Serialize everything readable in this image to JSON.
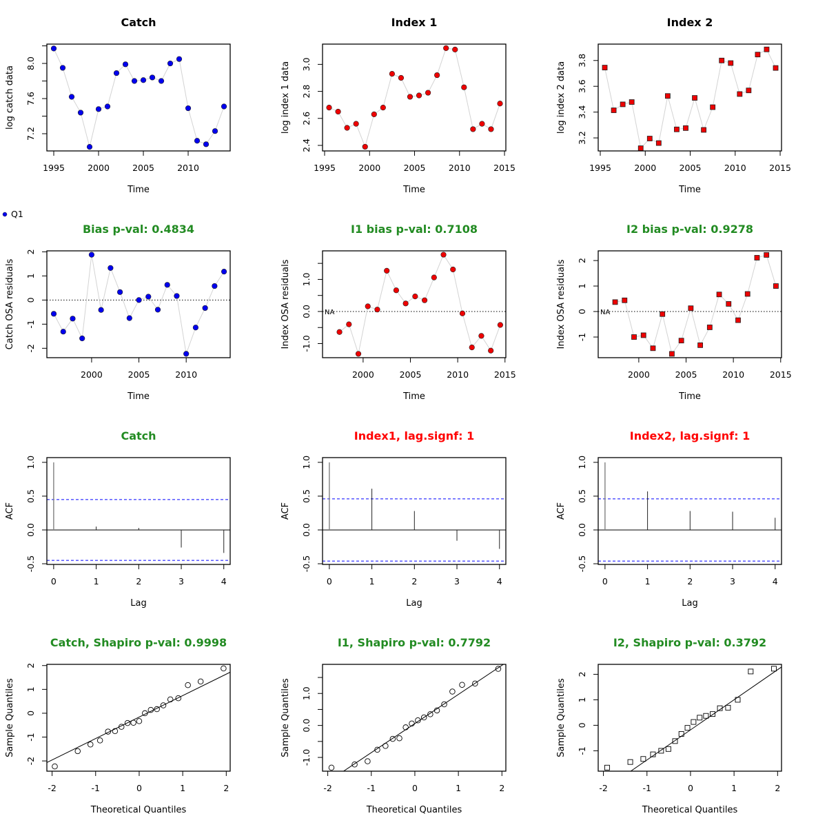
{
  "colors": {
    "title_black": "#000000",
    "title_green": "#228b22",
    "title_red": "#ff0000",
    "catch_point": "#0000ee",
    "index_point": "#ee0000",
    "connector_line": "#d3d3d3",
    "ci_line": "#0000ff"
  },
  "legend": {
    "marker": "filled-circle",
    "label": "Q1"
  },
  "chart_data": [
    {
      "id": "catch-data",
      "type": "line",
      "title": "Catch",
      "title_color": "black",
      "xlabel": "Time",
      "ylabel": "log catch data",
      "marker": "circle",
      "point_color": "catch",
      "xlim": [
        1994.23,
        2014.69
      ],
      "ylim": [
        7.004,
        8.22
      ],
      "xticks": [
        1995,
        2000,
        2005,
        2010
      ],
      "xtick_labels": [
        "1995",
        "2000",
        "2005",
        "2010"
      ],
      "yticks": [
        7.2,
        7.4,
        7.6,
        7.8,
        8.0,
        8.2
      ],
      "ytick_labels": [
        "7.2",
        "",
        "7.6",
        "",
        "8.0",
        ""
      ],
      "x": [
        1995,
        1996,
        1997,
        1998,
        1999,
        2000,
        2001,
        2002,
        2003,
        2004,
        2005,
        2006,
        2007,
        2008,
        2009,
        2010,
        2011,
        2012,
        2013,
        2014
      ],
      "y": [
        8.17,
        7.95,
        7.62,
        7.44,
        7.05,
        7.48,
        7.51,
        7.89,
        7.99,
        7.8,
        7.81,
        7.84,
        7.8,
        8.0,
        8.05,
        7.49,
        7.12,
        7.08,
        7.23,
        7.51
      ]
    },
    {
      "id": "index1-data",
      "type": "line",
      "title": "Index 1",
      "title_color": "black",
      "xlabel": "Time",
      "ylabel": "log index 1 data",
      "marker": "circle",
      "point_color": "index",
      "xlim": [
        1994.77,
        2015.15
      ],
      "ylim": [
        2.359,
        3.15
      ],
      "xticks": [
        1995,
        2000,
        2005,
        2010,
        2015
      ],
      "xtick_labels": [
        "1995",
        "2000",
        "2005",
        "2010",
        "2015"
      ],
      "yticks": [
        2.4,
        2.6,
        2.8,
        3.0
      ],
      "ytick_labels": [
        "2.4",
        "2.6",
        "2.8",
        "3.0"
      ],
      "x": [
        1995.5,
        1996.5,
        1997.5,
        1998.5,
        1999.5,
        2000.5,
        2001.5,
        2002.5,
        2003.5,
        2004.5,
        2005.5,
        2006.5,
        2007.5,
        2008.5,
        2009.5,
        2010.5,
        2011.5,
        2012.5,
        2013.5,
        2014.5
      ],
      "y": [
        2.68,
        2.65,
        2.53,
        2.56,
        2.39,
        2.63,
        2.68,
        2.93,
        2.9,
        2.76,
        2.77,
        2.79,
        2.92,
        3.12,
        3.11,
        2.83,
        2.52,
        2.56,
        2.52,
        2.71
      ]
    },
    {
      "id": "index2-data",
      "type": "line",
      "title": "Index 2",
      "title_color": "black",
      "xlabel": "Time",
      "ylabel": "log index 2 data",
      "marker": "square",
      "point_color": "index",
      "xlim": [
        1994.77,
        2015.15
      ],
      "ylim": [
        3.099,
        3.927
      ],
      "xticks": [
        1995,
        2000,
        2005,
        2010,
        2015
      ],
      "xtick_labels": [
        "1995",
        "2000",
        "2005",
        "2010",
        "2015"
      ],
      "yticks": [
        3.2,
        3.4,
        3.6,
        3.8
      ],
      "ytick_labels": [
        "3.2",
        "3.4",
        "3.6",
        "3.8"
      ],
      "x": [
        1995.5,
        1996.5,
        1997.5,
        1998.5,
        1999.5,
        2000.5,
        2001.5,
        2002.5,
        2003.5,
        2004.5,
        2005.5,
        2006.5,
        2007.5,
        2008.5,
        2009.5,
        2010.5,
        2011.5,
        2012.5,
        2013.5,
        2014.5
      ],
      "y": [
        3.745,
        3.414,
        3.46,
        3.478,
        3.12,
        3.195,
        3.16,
        3.525,
        3.266,
        3.276,
        3.51,
        3.262,
        3.438,
        3.8,
        3.78,
        3.54,
        3.568,
        3.846,
        3.886,
        3.742
      ]
    },
    {
      "id": "catch-osa",
      "type": "line",
      "title": "Bias p-val: 0.4834",
      "title_color": "green",
      "xlabel": "Time",
      "ylabel": "Catch OSA residuals",
      "marker": "circle",
      "point_color": "catch",
      "zero_line": true,
      "xlim": [
        1995.27,
        2014.65
      ],
      "ylim": [
        -2.39,
        2.04
      ],
      "xticks": [
        2000,
        2005,
        2010
      ],
      "xtick_labels": [
        "2000",
        "2005",
        "2010"
      ],
      "yticks": [
        -2,
        -1,
        0,
        1,
        2
      ],
      "ytick_labels": [
        "-2",
        "-1",
        "0",
        "1",
        "2"
      ],
      "x": [
        1996,
        1997,
        1998,
        1999,
        2000,
        2001,
        2002,
        2003,
        2004,
        2005,
        2006,
        2007,
        2008,
        2009,
        2010,
        2011,
        2012,
        2013,
        2014
      ],
      "y": [
        -0.57,
        -1.31,
        -0.77,
        -1.59,
        1.88,
        -0.41,
        1.33,
        0.33,
        -0.75,
        0.0,
        0.14,
        -0.4,
        0.63,
        0.17,
        -2.23,
        -1.14,
        -0.33,
        0.58,
        1.18
      ]
    },
    {
      "id": "index1-osa",
      "type": "line",
      "title": "I1 bias p-val: 0.7108",
      "title_color": "green",
      "xlabel": "Time",
      "ylabel": "Index OSA residuals",
      "marker": "circle",
      "point_color": "index",
      "zero_line": true,
      "na_label": "NA",
      "xlim": [
        1995.71,
        2015.09
      ],
      "ylim": [
        -1.44,
        1.89
      ],
      "xticks": [
        2000,
        2005,
        2010,
        2015
      ],
      "xtick_labels": [
        "2000",
        "2005",
        "2010",
        "2015"
      ],
      "yticks": [
        -1.0,
        -0.5,
        0.0,
        0.5,
        1.0,
        1.5
      ],
      "ytick_labels": [
        "-1.0",
        "",
        "0.0",
        "",
        "1.0",
        ""
      ],
      "x": [
        1997.5,
        1998.5,
        1999.5,
        2000.5,
        2001.5,
        2002.5,
        2003.5,
        2004.5,
        2005.5,
        2006.5,
        2007.5,
        2008.5,
        2009.5,
        2010.5,
        2011.5,
        2012.5,
        2013.5,
        2014.5
      ],
      "y": [
        -0.64,
        -0.4,
        -1.32,
        0.16,
        0.06,
        1.27,
        0.66,
        0.25,
        0.47,
        0.35,
        1.06,
        1.77,
        1.31,
        -0.06,
        -1.12,
        -0.76,
        -1.22,
        -0.42
      ]
    },
    {
      "id": "index2-osa",
      "type": "line",
      "title": "I2 bias p-val: 0.9278",
      "title_color": "green",
      "xlabel": "Time",
      "ylabel": "Index OSA residuals",
      "marker": "square",
      "point_color": "index",
      "zero_line": true,
      "na_label": "NA",
      "xlim": [
        1995.71,
        2015.09
      ],
      "ylim": [
        -1.81,
        2.38
      ],
      "xticks": [
        2000,
        2005,
        2010,
        2015
      ],
      "xtick_labels": [
        "2000",
        "2005",
        "2010",
        "2015"
      ],
      "yticks": [
        -1,
        0,
        1,
        2
      ],
      "ytick_labels": [
        "-1",
        "0",
        "1",
        "2"
      ],
      "x": [
        1997.5,
        1998.5,
        1999.5,
        2000.5,
        2001.5,
        2002.5,
        2003.5,
        2004.5,
        2005.5,
        2006.5,
        2007.5,
        2008.5,
        2009.5,
        2010.5,
        2011.5,
        2012.5,
        2013.5,
        2014.5
      ],
      "y": [
        0.37,
        0.44,
        -1.0,
        -0.93,
        -1.44,
        -0.1,
        -1.66,
        -1.14,
        0.13,
        -1.32,
        -0.62,
        0.67,
        0.3,
        -0.34,
        0.69,
        2.11,
        2.22,
        1.0
      ]
    },
    {
      "id": "catch-acf",
      "type": "bar",
      "title": "Catch",
      "title_color": "green",
      "xlabel": "Lag",
      "ylabel": "ACF",
      "xlim": [
        -0.16,
        4.15
      ],
      "ylim": [
        -0.51,
        1.07
      ],
      "xticks": [
        0,
        1,
        2,
        3,
        4
      ],
      "xtick_labels": [
        "0",
        "1",
        "2",
        "3",
        "4"
      ],
      "yticks": [
        -0.5,
        0.0,
        0.5,
        1.0
      ],
      "ytick_labels": [
        "-0.5",
        "0.0",
        "0.5",
        "1.0"
      ],
      "lags": [
        0,
        1,
        2,
        3,
        4
      ],
      "acf": [
        1.0,
        0.05,
        0.03,
        -0.26,
        -0.34
      ],
      "ci": 0.45
    },
    {
      "id": "index1-acf",
      "type": "bar",
      "title": "Index1, lag.signf: 1",
      "title_color": "red",
      "xlabel": "Lag",
      "ylabel": "ACF",
      "xlim": [
        -0.16,
        4.15
      ],
      "ylim": [
        -0.51,
        1.07
      ],
      "xticks": [
        0,
        1,
        2,
        3,
        4
      ],
      "xtick_labels": [
        "0",
        "1",
        "2",
        "3",
        "4"
      ],
      "yticks": [
        -0.5,
        0.0,
        0.5,
        1.0
      ],
      "ytick_labels": [
        "-0.5",
        "0.0",
        "0.5",
        "1.0"
      ],
      "lags": [
        0,
        1,
        2,
        3,
        4
      ],
      "acf": [
        1.0,
        0.61,
        0.28,
        -0.16,
        -0.28
      ],
      "ci": 0.46
    },
    {
      "id": "index2-acf",
      "type": "bar",
      "title": "Index2, lag.signf: 1",
      "title_color": "red",
      "xlabel": "Lag",
      "ylabel": "ACF",
      "xlim": [
        -0.16,
        4.15
      ],
      "ylim": [
        -0.51,
        1.07
      ],
      "xticks": [
        0,
        1,
        2,
        3,
        4
      ],
      "xtick_labels": [
        "0",
        "1",
        "2",
        "3",
        "4"
      ],
      "yticks": [
        -0.5,
        0.0,
        0.5,
        1.0
      ],
      "ytick_labels": [
        "-0.5",
        "0.0",
        "0.5",
        "1.0"
      ],
      "lags": [
        0,
        1,
        2,
        3,
        4
      ],
      "acf": [
        1.0,
        0.57,
        0.28,
        0.27,
        0.18
      ],
      "ci": 0.46
    },
    {
      "id": "catch-qq",
      "type": "scatter",
      "title": "Catch, Shapiro p-val: 0.9998",
      "title_color": "green",
      "xlabel": "Theoretical Quantiles",
      "ylabel": "Sample Quantiles",
      "marker": "open-circle",
      "xlim": [
        -2.12,
        2.09
      ],
      "ylim": [
        -2.43,
        2.05
      ],
      "xticks": [
        -2,
        -1,
        0,
        1,
        2
      ],
      "xtick_labels": [
        "-2",
        "-1",
        "0",
        "1",
        "2"
      ],
      "yticks": [
        -2,
        -1,
        0,
        1,
        2
      ],
      "ytick_labels": [
        "-2",
        "-1",
        "0",
        "1",
        "2"
      ],
      "x": [
        -1.938,
        -1.412,
        -1.119,
        -0.899,
        -0.716,
        -0.555,
        -0.407,
        -0.267,
        -0.132,
        0.0,
        0.132,
        0.267,
        0.407,
        0.555,
        0.716,
        0.899,
        1.119,
        1.412,
        1.938
      ],
      "y": [
        -2.23,
        -1.59,
        -1.31,
        -1.14,
        -0.77,
        -0.75,
        -0.57,
        -0.41,
        -0.4,
        -0.33,
        0.0,
        0.14,
        0.17,
        0.33,
        0.58,
        0.63,
        1.18,
        1.33,
        1.88
      ],
      "qqline": {
        "intercept": -0.16,
        "slope": 0.9
      }
    },
    {
      "id": "index1-qq",
      "type": "scatter",
      "title": "I1, Shapiro p-val: 0.7792",
      "title_color": "green",
      "xlabel": "Theoretical Quantiles",
      "ylabel": "Sample Quantiles",
      "marker": "open-circle",
      "xlim": [
        -2.12,
        2.09
      ],
      "ylim": [
        -1.43,
        1.91
      ],
      "xticks": [
        -2,
        -1,
        0,
        1,
        2
      ],
      "xtick_labels": [
        "-2",
        "-1",
        "0",
        "1",
        "2"
      ],
      "yticks": [
        -1.0,
        -0.5,
        0.0,
        0.5,
        1.0,
        1.5
      ],
      "ytick_labels": [
        "-1.0",
        "",
        "0.0",
        "",
        "1.0",
        ""
      ],
      "x": [
        -1.915,
        -1.383,
        -1.085,
        -0.862,
        -0.674,
        -0.508,
        -0.355,
        -0.21,
        -0.07,
        0.07,
        0.21,
        0.355,
        0.508,
        0.674,
        0.862,
        1.085,
        1.383,
        1.915
      ],
      "y": [
        -1.32,
        -1.22,
        -1.12,
        -0.76,
        -0.64,
        -0.42,
        -0.4,
        -0.06,
        0.06,
        0.16,
        0.25,
        0.35,
        0.47,
        0.66,
        1.06,
        1.27,
        1.31,
        1.77
      ],
      "qqline": {
        "intercept": 0.06,
        "slope": 0.91
      }
    },
    {
      "id": "index2-qq",
      "type": "scatter",
      "title": "I2, Shapiro p-val: 0.3792",
      "title_color": "green",
      "xlabel": "Theoretical Quantiles",
      "ylabel": "Sample Quantiles",
      "marker": "open-square",
      "xlim": [
        -2.12,
        2.09
      ],
      "ylim": [
        -1.8,
        2.39
      ],
      "xticks": [
        -2,
        -1,
        0,
        1,
        2
      ],
      "xtick_labels": [
        "-2",
        "-1",
        "0",
        "1",
        "2"
      ],
      "yticks": [
        -1,
        0,
        1,
        2
      ],
      "ytick_labels": [
        "-1",
        "0",
        "1",
        "2"
      ],
      "x": [
        -1.915,
        -1.383,
        -1.085,
        -0.862,
        -0.674,
        -0.508,
        -0.355,
        -0.21,
        -0.07,
        0.07,
        0.21,
        0.355,
        0.508,
        0.674,
        0.862,
        1.085,
        1.383,
        1.915
      ],
      "y": [
        -1.66,
        -1.44,
        -1.32,
        -1.14,
        -1.0,
        -0.93,
        -0.62,
        -0.34,
        -0.1,
        0.13,
        0.3,
        0.37,
        0.44,
        0.67,
        0.69,
        1.0,
        2.11,
        2.22
      ],
      "qqline": {
        "intercept": -0.18,
        "slope": 1.18
      }
    }
  ]
}
